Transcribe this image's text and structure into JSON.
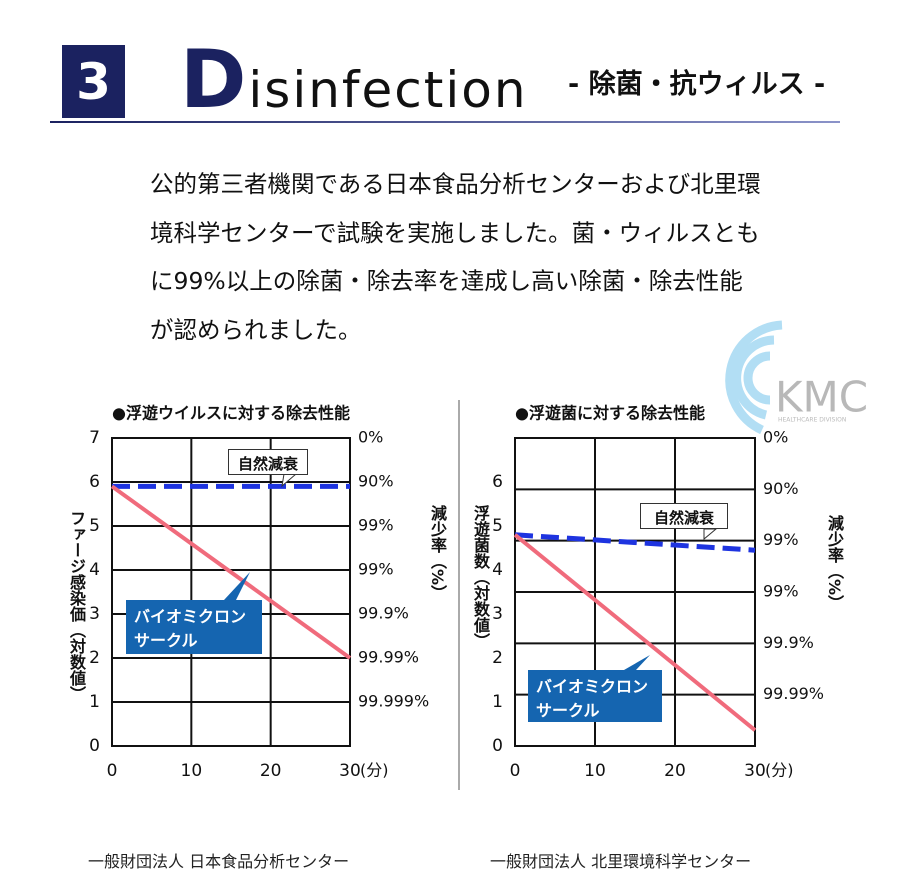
{
  "header": {
    "number": "3",
    "title": "Disinfection",
    "subtitle": "- 除菌・抗ウィルス -"
  },
  "intro": "公的第三者機関である日本食品分析センターおよび北里環境科学センターで試験を実施しました。菌・ウィルスともに99%以上の除菌・除去率を達成し高い除菌・除去性能が認められました。",
  "watermark": {
    "logo": "KMC",
    "division": "HEALTHCARE DIVISION"
  },
  "chart_data": [
    {
      "type": "line",
      "title": "●浮遊ウイルスに対する除去性能",
      "y_label": "ファージ感染価（対数値）",
      "y2_label": "減少率（%）",
      "x_unit": "(分)",
      "xlim": [
        0,
        30
      ],
      "xticks": [
        0,
        10,
        20,
        30
      ],
      "ylim": [
        0,
        7
      ],
      "yticks": [
        0,
        1,
        2,
        3,
        4,
        5,
        6,
        7
      ],
      "y2lim": [
        0,
        7
      ],
      "y2ticks": [
        {
          "value": 7,
          "label": "0%"
        },
        {
          "value": 6,
          "label": "90%"
        },
        {
          "value": 5,
          "label": "99%"
        },
        {
          "value": 4,
          "label": "99%"
        },
        {
          "value": 3,
          "label": "99.9%"
        },
        {
          "value": 2,
          "label": "99.99%"
        },
        {
          "value": 1,
          "label": "99.999%"
        }
      ],
      "grid": "y",
      "x": [
        0,
        30
      ],
      "series": [
        {
          "name": "自然減衰",
          "color": "#1e34e0",
          "dashed": true,
          "values": [
            5.9,
            5.9
          ]
        },
        {
          "name": "バイオミクロンサークル",
          "color": "#f06b7c",
          "dashed": false,
          "values": [
            5.9,
            2.0
          ]
        }
      ],
      "source": "一般財団法人 日本食品分析センター"
    },
    {
      "type": "line",
      "title": "●浮遊菌に対する除去性能",
      "y_label": "浮遊菌数（対数値）",
      "y2_label": "減少率（%）",
      "x_unit": "(分)",
      "xlim": [
        0,
        30
      ],
      "xticks": [
        0,
        10,
        20,
        30
      ],
      "ylim": [
        0,
        7
      ],
      "yticks": [
        0,
        1,
        2,
        3,
        4,
        5,
        6
      ],
      "y2lim": [
        0,
        6
      ],
      "y2ticks": [
        {
          "value": 6,
          "label": "0%"
        },
        {
          "value": 5,
          "label": "90%"
        },
        {
          "value": 4,
          "label": "99%"
        },
        {
          "value": 3,
          "label": "99%"
        },
        {
          "value": 2,
          "label": "99.9%"
        },
        {
          "value": 1,
          "label": "99.99%"
        }
      ],
      "grid": "y2",
      "x": [
        0,
        30
      ],
      "series": [
        {
          "name": "自然減衰",
          "color": "#1e34e0",
          "dashed": true,
          "values": [
            4.8,
            4.45
          ]
        },
        {
          "name": "バイオミクロンサークル",
          "color": "#f06b7c",
          "dashed": false,
          "values": [
            4.8,
            0.36
          ]
        }
      ],
      "source": "一般財団法人 北里環境科学センター"
    }
  ]
}
